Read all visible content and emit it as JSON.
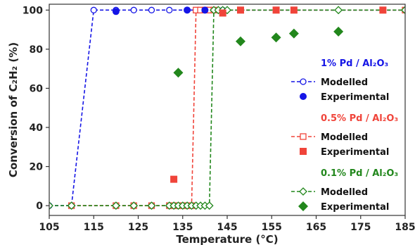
{
  "chart_data": {
    "type": "line",
    "xlabel": "Temperature (°C)",
    "ylabel": "Conversion of C₂H₂ (%)",
    "xlim": [
      105,
      185
    ],
    "ylim": [
      -5,
      103
    ],
    "xticks": [
      105,
      115,
      125,
      135,
      145,
      155,
      165,
      175,
      185
    ],
    "yticks": [
      0,
      20,
      40,
      60,
      80,
      100
    ],
    "grid": false,
    "legend_placement": "right",
    "groups": [
      {
        "title": "1% Pd / Al₂O₃",
        "color": "#1515e6",
        "marker_modelled": "open-circle",
        "marker_experimental": "filled-circle",
        "modelled_label": "Modelled",
        "experimental_label": "Experimental",
        "modelled": {
          "x": [
            105,
            110,
            115,
            120,
            124,
            128,
            132,
            136,
            140,
            144,
            185
          ],
          "y": [
            0,
            0,
            100,
            100,
            100,
            100,
            100,
            100,
            100,
            100,
            100
          ]
        },
        "experimental": {
          "x": [
            120,
            136,
            140
          ],
          "y": [
            99.3,
            100,
            100
          ]
        }
      },
      {
        "title": "0.5% Pd / Al₂O₃",
        "color": "#f0443a",
        "marker_modelled": "open-square",
        "marker_experimental": "filled-square",
        "modelled_label": "Modelled",
        "experimental_label": "Experimental",
        "modelled": {
          "x": [
            110,
            120,
            124,
            128,
            132,
            133,
            134,
            135,
            136,
            137,
            138,
            139,
            140,
            141,
            142,
            185
          ],
          "y": [
            0,
            0,
            0,
            0,
            0,
            0,
            0,
            0,
            0,
            0,
            100,
            100,
            100,
            100,
            100,
            100
          ]
        },
        "experimental": {
          "x": [
            133,
            144,
            148,
            156,
            160,
            180
          ],
          "y": [
            13.5,
            98.5,
            100,
            100,
            100,
            100
          ]
        }
      },
      {
        "title": "0.1% Pd / Al₂O₃",
        "color": "#22871c",
        "marker_modelled": "open-diamond",
        "marker_experimental": "filled-diamond",
        "modelled_label": "Modelled",
        "experimental_label": "Experimental",
        "modelled": {
          "x": [
            105,
            110,
            120,
            124,
            128,
            132,
            133,
            134,
            135,
            136,
            137,
            138,
            139,
            140,
            141,
            142,
            143,
            144,
            145,
            170,
            185
          ],
          "y": [
            0,
            0,
            0,
            0,
            0,
            0,
            0,
            0,
            0,
            0,
            0,
            0,
            0,
            0,
            0,
            100,
            100,
            100,
            100,
            100,
            100
          ]
        },
        "experimental": {
          "x": [
            134,
            148,
            156,
            160,
            170
          ],
          "y": [
            68,
            84,
            86,
            88,
            89
          ]
        }
      }
    ]
  }
}
